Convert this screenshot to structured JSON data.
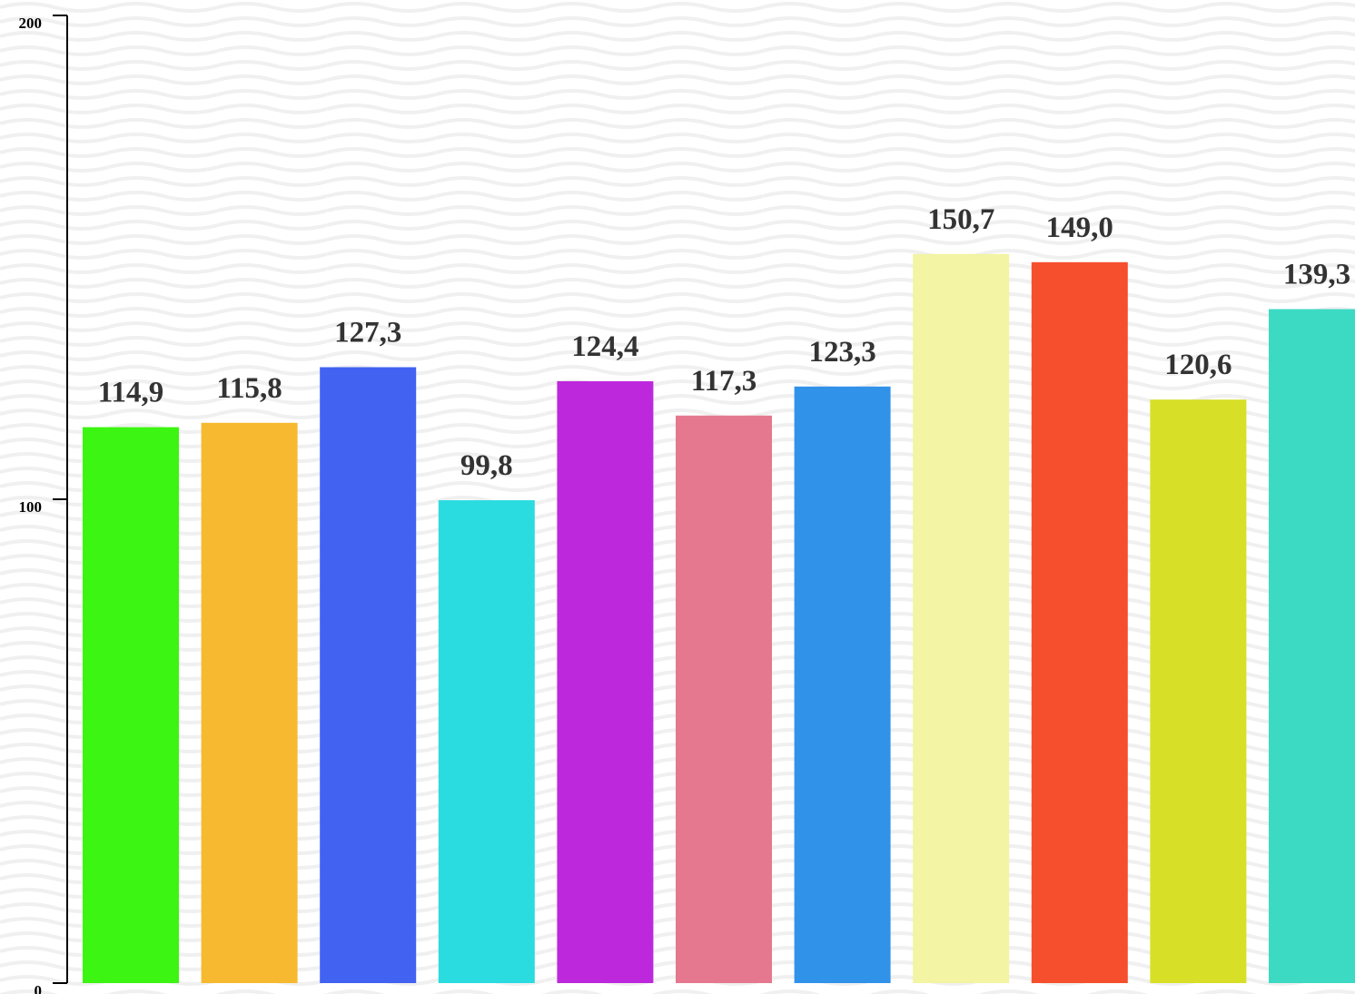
{
  "chart_data": {
    "type": "bar",
    "categories": [
      "",
      "",
      "",
      "",
      "",
      "",
      "",
      "",
      "",
      "",
      ""
    ],
    "values": [
      114.9,
      115.8,
      127.3,
      99.8,
      124.4,
      117.3,
      123.3,
      150.7,
      149.0,
      120.6,
      139.3
    ],
    "value_labels": [
      "114,9",
      "115,8",
      "127,3",
      "99,8",
      "124,4",
      "117,3",
      "123,3",
      "150,7",
      "149,0",
      "120,6",
      "139,3"
    ],
    "colors": [
      "#3cf512",
      "#f7b92f",
      "#4262f2",
      "#2adbe0",
      "#bd28dc",
      "#e5788e",
      "#3192ea",
      "#f3f4a4",
      "#f54f2e",
      "#d7e026",
      "#3ddac3"
    ],
    "yticks": [
      0,
      100,
      200
    ],
    "ytick_labels": [
      "0",
      "100",
      "200"
    ],
    "ylim": [
      0,
      200
    ],
    "grid": false,
    "title": "",
    "xlabel": "",
    "ylabel": ""
  }
}
